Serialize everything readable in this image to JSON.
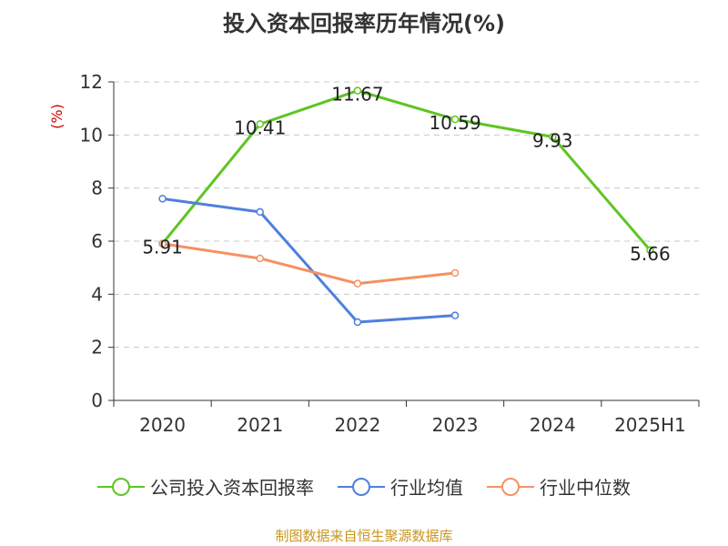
{
  "title": "投入资本回报率历年情况(%)",
  "footer": "制图数据来自恒生聚源数据库",
  "chart_data": {
    "type": "line",
    "title": "投入资本回报率历年情况(%)",
    "ylabel": "(%)",
    "xlabel": "",
    "categories": [
      "2020",
      "2021",
      "2022",
      "2023",
      "2024",
      "2025H1"
    ],
    "y_ticks": [
      "0",
      "2",
      "4",
      "6",
      "8",
      "10",
      "12"
    ],
    "ylim": [
      0,
      12
    ],
    "grid": true,
    "legend_position": "bottom",
    "series": [
      {
        "name": "公司投入资本回报率",
        "color": "#5ec522",
        "values": [
          5.91,
          10.41,
          11.67,
          10.59,
          9.93,
          5.66
        ],
        "labels": [
          "5.91",
          "10.41",
          "11.67",
          "10.59",
          "9.93",
          "5.66"
        ]
      },
      {
        "name": "行业均值",
        "color": "#4f7fde",
        "values": [
          7.6,
          7.1,
          2.95,
          3.2,
          null,
          null
        ]
      },
      {
        "name": "行业中位数",
        "color": "#f59162",
        "values": [
          5.9,
          5.35,
          4.4,
          4.8,
          null,
          null
        ]
      }
    ]
  }
}
